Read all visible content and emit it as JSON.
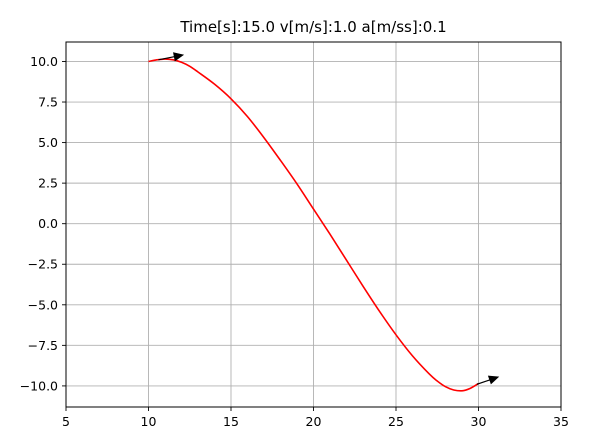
{
  "chart_data": {
    "type": "line",
    "title": "Time[s]:15.0 v[m/s]:1.0 a[m/ss]:0.1",
    "xlabel": "",
    "ylabel": "",
    "xlim": [
      5,
      35
    ],
    "ylim": [
      -11.3,
      11.2
    ],
    "xticks": [
      5,
      10,
      15,
      20,
      25,
      30,
      35
    ],
    "xtick_labels": [
      "5",
      "10",
      "15",
      "20",
      "25",
      "30",
      "35"
    ],
    "yticks": [
      10.0,
      7.5,
      5.0,
      2.5,
      0.0,
      -2.5,
      -5.0,
      -7.5,
      -10.0
    ],
    "ytick_labels": [
      "10.0",
      "7.5",
      "5.0",
      "2.5",
      "0.0",
      "−2.5",
      "−5.0",
      "−7.5",
      "−10.0"
    ],
    "grid": true,
    "series": [
      {
        "color": "#ff0000",
        "x": [
          10.0,
          10.5,
          11.0,
          11.5,
          12.0,
          12.5,
          13.0,
          14.0,
          15.0,
          16.0,
          17.0,
          18.0,
          19.0,
          20.0,
          21.0,
          22.0,
          23.0,
          24.0,
          25.0,
          26.0,
          27.0,
          27.5,
          28.0,
          28.5,
          29.0,
          29.5,
          30.0
        ],
        "y": [
          10.0,
          10.1,
          10.15,
          10.1,
          9.95,
          9.7,
          9.35,
          8.6,
          7.7,
          6.6,
          5.3,
          3.9,
          2.45,
          0.9,
          -0.65,
          -2.25,
          -3.85,
          -5.4,
          -6.85,
          -8.15,
          -9.25,
          -9.7,
          -10.05,
          -10.25,
          -10.3,
          -10.15,
          -9.85
        ]
      }
    ],
    "arrows": [
      {
        "x": 10.6,
        "y": 10.1,
        "dx": 1.5,
        "dy": 0.3,
        "color": "#000000"
      },
      {
        "x": 29.9,
        "y": -9.9,
        "dx": 1.3,
        "dy": 0.45,
        "color": "#000000"
      }
    ]
  }
}
